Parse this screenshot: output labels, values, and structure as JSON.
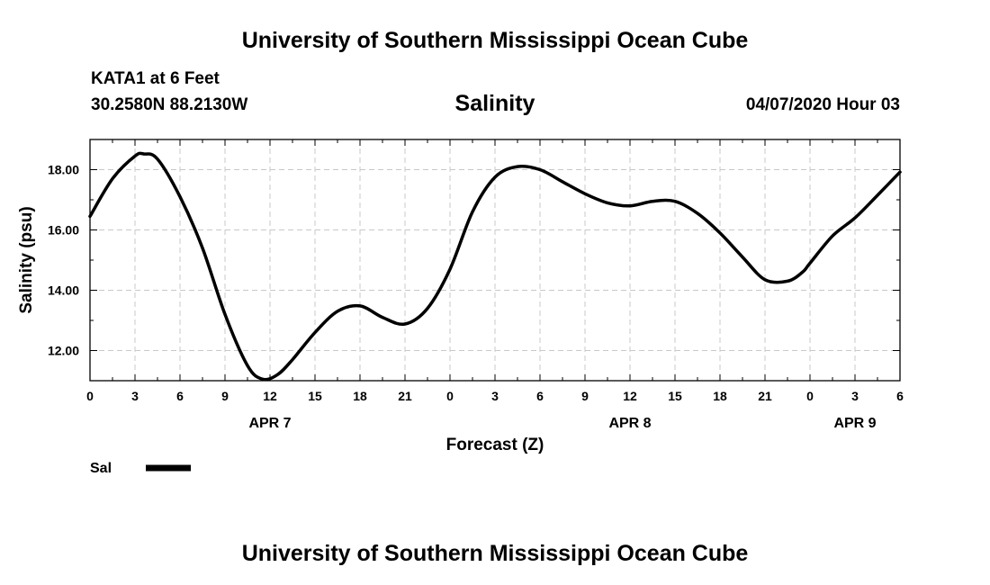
{
  "header": {
    "title": "University of Southern Mississippi Ocean Cube",
    "station": "KATA1 at 6 Feet",
    "coords": "30.2580N 88.2130W",
    "run_time": "04/07/2020 Hour 03"
  },
  "footer": {
    "title": "University of Southern Mississippi Ocean Cube"
  },
  "legend": {
    "label": "Sal",
    "color": "#000000"
  },
  "chart_data": {
    "type": "line",
    "title": "Salinity",
    "xlabel": "Forecast (Z)",
    "ylabel": "Salinity (psu)",
    "xlim": [
      0,
      54
    ],
    "ylim": [
      11.0,
      19.0
    ],
    "x_ticks": [
      0,
      3,
      6,
      9,
      12,
      15,
      18,
      21,
      24,
      27,
      30,
      33,
      36,
      39,
      42,
      45,
      48,
      51,
      54
    ],
    "x_tick_labels": [
      "0",
      "3",
      "6",
      "9",
      "12",
      "15",
      "18",
      "21",
      "0",
      "3",
      "6",
      "9",
      "12",
      "15",
      "18",
      "21",
      "0",
      "3",
      "6"
    ],
    "day_labels": [
      {
        "x": 12,
        "label": "APR 7"
      },
      {
        "x": 36,
        "label": "APR 8"
      },
      {
        "x": 51,
        "label": "APR 9"
      }
    ],
    "y_ticks": [
      12,
      14,
      16,
      18
    ],
    "y_tick_labels": [
      "12.00",
      "14.00",
      "16.00",
      "18.00"
    ],
    "grid": true,
    "legend_position": "bottom-left",
    "series": [
      {
        "name": "Sal",
        "x": [
          0,
          1.5,
          3,
          3.6,
          4.5,
          6,
          7.5,
          9,
          10.5,
          11.5,
          12.5,
          13.5,
          15,
          16.5,
          18,
          19.5,
          21,
          22.5,
          24,
          25.5,
          27,
          28.5,
          30,
          31.5,
          33,
          34.5,
          36,
          37.5,
          39,
          40.5,
          42,
          43.5,
          45,
          46.5,
          47.5,
          48,
          49.5,
          51,
          52.5,
          54
        ],
        "y": [
          16.45,
          17.7,
          18.45,
          18.52,
          18.35,
          17.1,
          15.4,
          13.2,
          11.5,
          11.05,
          11.2,
          11.7,
          12.6,
          13.3,
          13.48,
          13.1,
          12.88,
          13.4,
          14.7,
          16.6,
          17.75,
          18.1,
          18.0,
          17.6,
          17.2,
          16.9,
          16.8,
          16.95,
          16.95,
          16.55,
          15.9,
          15.1,
          14.35,
          14.3,
          14.6,
          14.9,
          15.8,
          16.4,
          17.15,
          17.92
        ]
      }
    ]
  }
}
